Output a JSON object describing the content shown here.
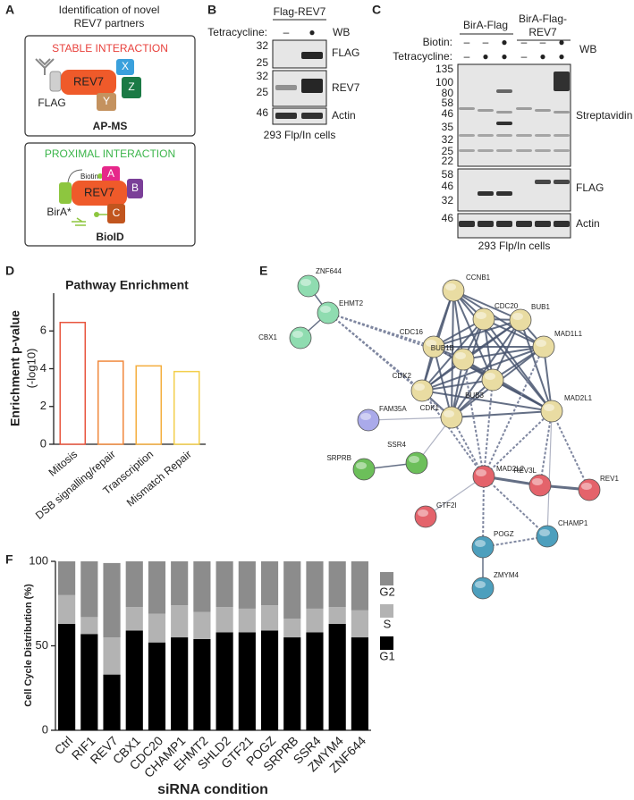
{
  "panel_labels": [
    "A",
    "B",
    "C",
    "D",
    "E",
    "F"
  ],
  "panel_a": {
    "title": [
      "Identification of novel",
      "REV7 partners"
    ],
    "stable": {
      "heading": "STABLE INTERACTION",
      "tag": "FLAG",
      "bait": "REV7",
      "preys": [
        "X",
        "Z",
        "Y"
      ],
      "method": "AP-MS"
    },
    "proximal": {
      "heading": "PROXIMAL INTERACTION",
      "label": "Biotin",
      "enzyme": "BirA*",
      "bait": "REV7",
      "preys": [
        "A",
        "B",
        "C"
      ],
      "method": "BioID"
    }
  },
  "panel_b": {
    "construct": "Flag-REV7",
    "rows": [
      {
        "label": "Tetracycline:",
        "lanes": [
          "–",
          "●"
        ]
      }
    ],
    "method": "WB",
    "blots": [
      {
        "name": "FLAG",
        "markers": [
          32,
          25
        ]
      },
      {
        "name": "REV7",
        "markers": [
          32,
          25
        ]
      },
      {
        "name": "Actin",
        "markers": [
          46
        ]
      }
    ],
    "cells": "293 Flp/In cells"
  },
  "panel_c": {
    "groups": [
      [
        "BirA-Flag"
      ],
      [
        "BirA-Flag-",
        "REV7"
      ]
    ],
    "rows": [
      {
        "label": "Biotin:",
        "lanes": [
          "–",
          "–",
          "●",
          "–",
          "–",
          "●"
        ]
      },
      {
        "label": "Tetracycline:",
        "lanes": [
          "–",
          "●",
          "●",
          "–",
          "●",
          "●"
        ]
      }
    ],
    "method": "WB",
    "blots": [
      {
        "name": "Streptavidin",
        "markers": [
          135,
          100,
          80,
          58,
          46,
          35,
          32,
          25,
          22
        ]
      },
      {
        "name": "FLAG",
        "markers": [
          58,
          46,
          32
        ]
      },
      {
        "name": "Actin",
        "markers": [
          46
        ]
      }
    ],
    "cells": "293 Flp/In cells"
  },
  "chart_data": [
    {
      "type": "bar",
      "title": "Pathway Enrichment",
      "ylabel": "Enrichment p-value",
      "ylabel_unit": "(-log10)",
      "categories": [
        "Mitosis",
        "DSB signalling/repair",
        "Transcription",
        "Mismatch Repair"
      ],
      "values": [
        6.45,
        4.4,
        4.15,
        3.85
      ],
      "colors": [
        "#e8553e",
        "#f0883c",
        "#f4ae3e",
        "#f3cf4c"
      ],
      "ylim": [
        0,
        8
      ],
      "yticks": [
        0,
        2,
        4,
        6
      ]
    },
    {
      "type": "stacked_bar",
      "ylabel": "Cell Cycle Distribution (%)",
      "xlabel": "siRNA condition",
      "categories": [
        "Ctrl",
        "RIF1",
        "REV7",
        "CBX1",
        "CDC20",
        "CHAMP1",
        "EHMT2",
        "SHLD2",
        "GTF21",
        "POGZ",
        "SRPRB",
        "SSR4",
        "ZMYM4",
        "ZNF644"
      ],
      "series": [
        {
          "name": "G1",
          "color": "#000000",
          "values": [
            63,
            57,
            33,
            59,
            52,
            55,
            54,
            58,
            58,
            59,
            55,
            58,
            63,
            55
          ]
        },
        {
          "name": "S",
          "color": "#b3b3b3",
          "values": [
            17,
            10,
            22,
            14,
            17,
            19,
            16,
            15,
            14,
            15,
            11,
            14,
            10,
            16
          ]
        },
        {
          "name": "G2",
          "color": "#8c8c8c",
          "values": [
            20,
            33,
            44,
            27,
            31,
            26,
            30,
            27,
            28,
            26,
            34,
            28,
            27,
            29
          ]
        }
      ],
      "ylim": [
        0,
        100
      ],
      "yticks": [
        0,
        50,
        100
      ]
    }
  ],
  "panel_e": {
    "nodes": [
      {
        "label": "ZNF644",
        "color": "#8fdcb0"
      },
      {
        "label": "EHMT2",
        "color": "#8fdcb0"
      },
      {
        "label": "CBX1",
        "color": "#8fdcb0"
      },
      {
        "label": "CCNB1",
        "color": "#e9dca2"
      },
      {
        "label": "CDC20",
        "color": "#e9dca2"
      },
      {
        "label": "BUB1",
        "color": "#e9dca2"
      },
      {
        "label": "CDC16",
        "color": "#e9dca2"
      },
      {
        "label": "BUB1B",
        "color": "#e9dca2"
      },
      {
        "label": "MAD1L1",
        "color": "#e9dca2"
      },
      {
        "label": "BUB3",
        "color": "#e9dca2"
      },
      {
        "label": "CDK2",
        "color": "#e9dca2"
      },
      {
        "label": "CDK1",
        "color": "#e9dca2"
      },
      {
        "label": "MAD2L1",
        "color": "#e9dca2"
      },
      {
        "label": "FAM35A",
        "color": "#aaaaea"
      },
      {
        "label": "SRPRB",
        "color": "#6cbf5a"
      },
      {
        "label": "SSR4",
        "color": "#6cbf5a"
      },
      {
        "label": "MAD2L2",
        "color": "#e4636b"
      },
      {
        "label": "REV3L",
        "color": "#e4636b"
      },
      {
        "label": "REV1",
        "color": "#e4636b"
      },
      {
        "label": "GTF2I",
        "color": "#e4636b"
      },
      {
        "label": "POGZ",
        "color": "#4d9fbd"
      },
      {
        "label": "CHAMP1",
        "color": "#4d9fbd"
      },
      {
        "label": "ZMYM4",
        "color": "#4d9fbd"
      }
    ]
  }
}
